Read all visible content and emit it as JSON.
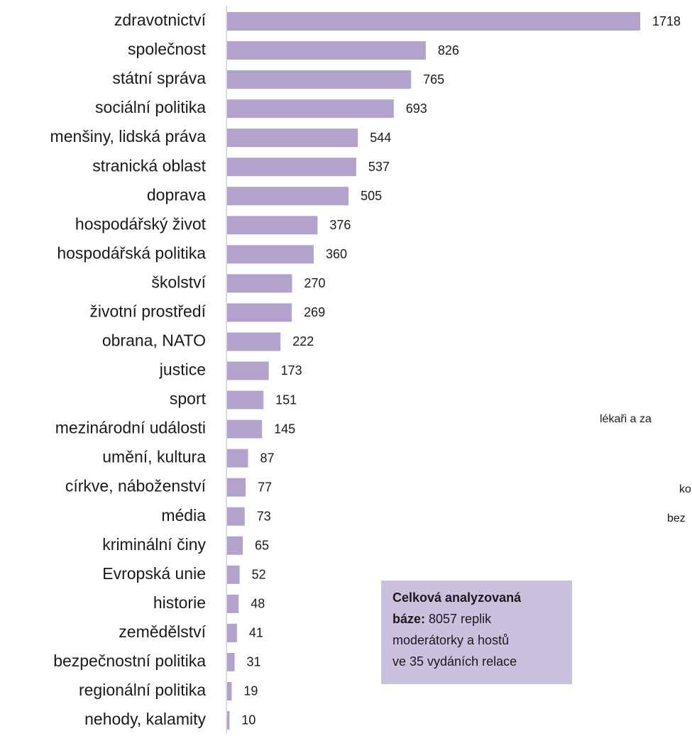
{
  "chart_data": {
    "type": "bar",
    "orientation": "horizontal",
    "categories": [
      "zdravotnictví",
      "společnost",
      "státní správa",
      "sociální politika",
      "menšiny, lidská práva",
      "stranická oblast",
      "doprava",
      "hospodářský život",
      "hospodářská politika",
      "školství",
      "životní prostředí",
      "obrana, NATO",
      "justice",
      "sport",
      "mezinárodní události",
      "umění, kultura",
      "církve, náboženství",
      "média",
      "kriminální činy",
      "Evropská unie",
      "historie",
      "zemědělství",
      "bezpečnostní politika",
      "regionální politika",
      "nehody, kalamity"
    ],
    "values": [
      1718,
      826,
      765,
      693,
      544,
      537,
      505,
      376,
      360,
      270,
      269,
      222,
      173,
      151,
      145,
      87,
      77,
      73,
      65,
      52,
      48,
      41,
      31,
      19,
      10
    ],
    "color": "#b3a2cc",
    "note": {
      "color": "#cbc1de",
      "lines": [
        [
          {
            "text": "Celková analyzovaná",
            "bold": true
          }
        ],
        [
          {
            "text": "báze:",
            "bold": true
          },
          {
            "text": " 8057 replik",
            "bold": false
          }
        ],
        [
          {
            "text": "moderátorky a hostů",
            "bold": false
          }
        ],
        [
          {
            "text": "ve 35 vydáních relace",
            "bold": false
          }
        ]
      ]
    },
    "annotations": [
      "lékaři a za",
      "ko",
      "bez"
    ]
  }
}
